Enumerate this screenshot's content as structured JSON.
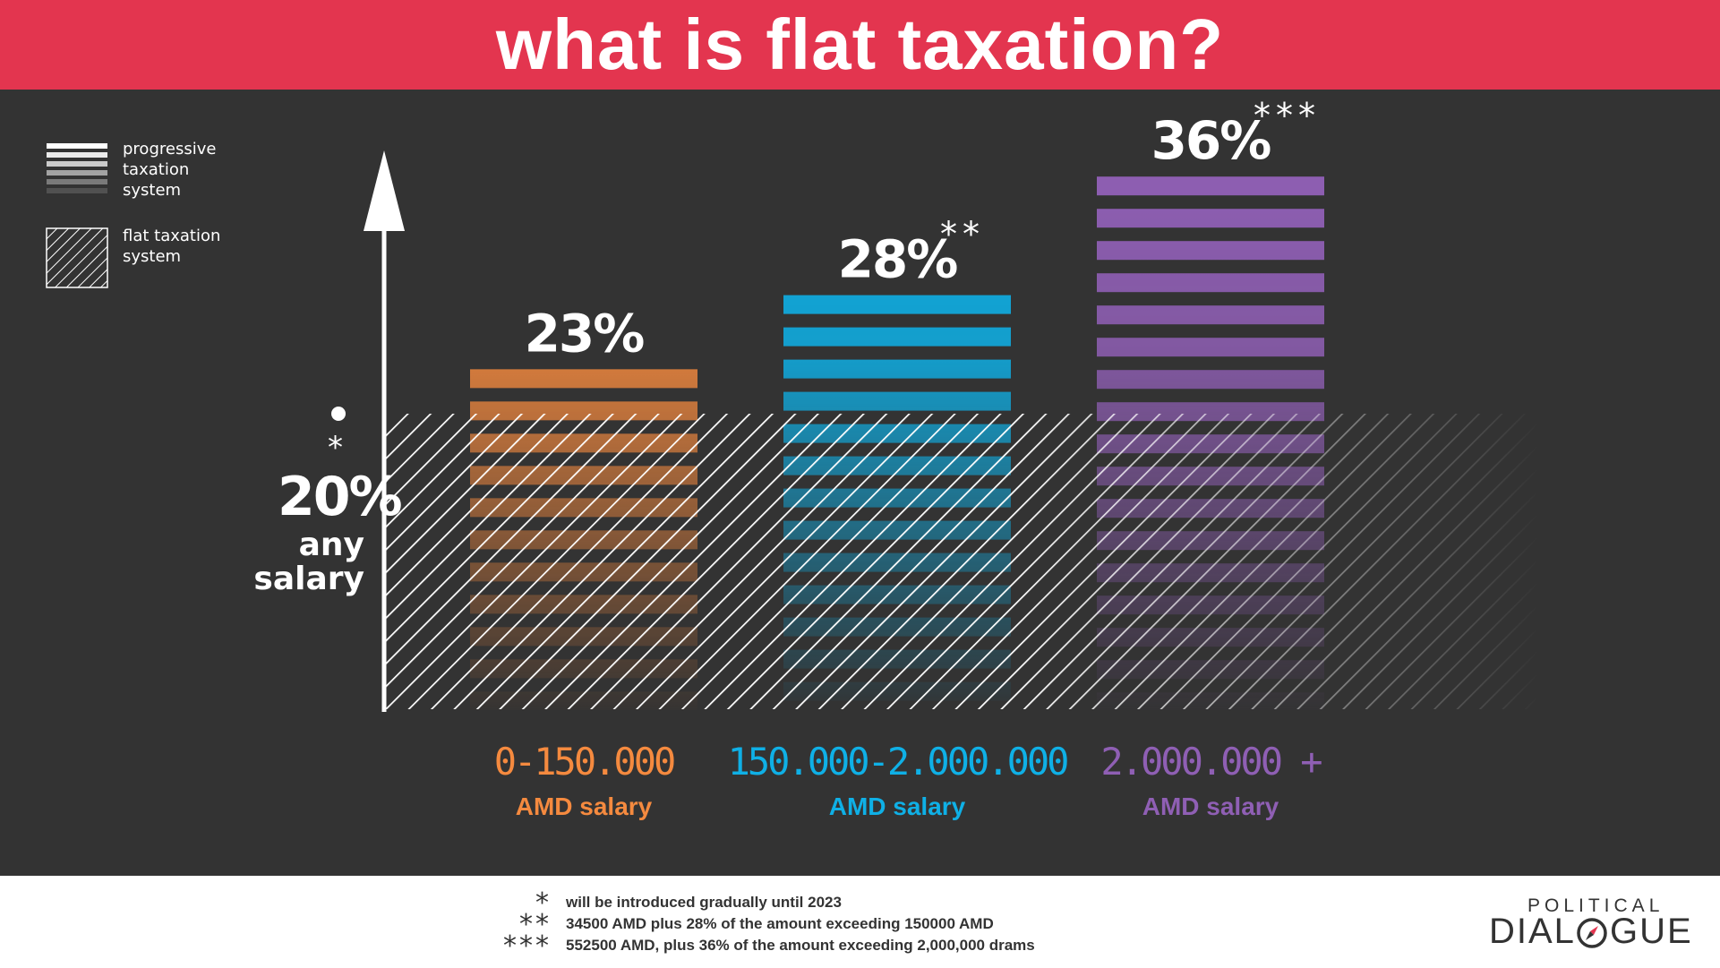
{
  "header": {
    "title": "what is flat taxation?"
  },
  "legend": {
    "progressive_label": "progressive taxation system",
    "flat_label": "flat taxation system"
  },
  "flat_rate": {
    "value_label": "20%",
    "mark": "*",
    "caption_line1": "any",
    "caption_line2": "salary"
  },
  "chart_data": {
    "type": "bar",
    "categories": [
      "0-150.000",
      "150.000-2.000.000",
      "2.000.000 +"
    ],
    "category_sublabel": "AMD salary",
    "series": [
      {
        "name": "progressive taxation system",
        "values": [
          23,
          28,
          36
        ]
      },
      {
        "name": "flat taxation system",
        "values": [
          20,
          20,
          20
        ]
      }
    ],
    "data_labels": [
      "23%",
      "28%",
      "36%"
    ],
    "footnote_marks": [
      "",
      "**",
      "***"
    ],
    "colors": [
      "#f58a3f",
      "#0fb0e6",
      "#8f5fb4"
    ],
    "flat_color": "#ffffff",
    "background": "#333333",
    "ylim": [
      0,
      40
    ]
  },
  "footnotes": [
    {
      "mark": "*",
      "text": "will be introduced gradually until 2023"
    },
    {
      "mark": "**",
      "text": "34500 AMD plus 28% of the amount exceeding 150000 AMD"
    },
    {
      "mark": "***",
      "text": "552500 AMD, plus 36% of the amount exceeding 2,000,000 drams"
    }
  ],
  "brand": {
    "top": "POLITICAL",
    "bottom_left": "DIAL",
    "bottom_right": "GUE"
  }
}
